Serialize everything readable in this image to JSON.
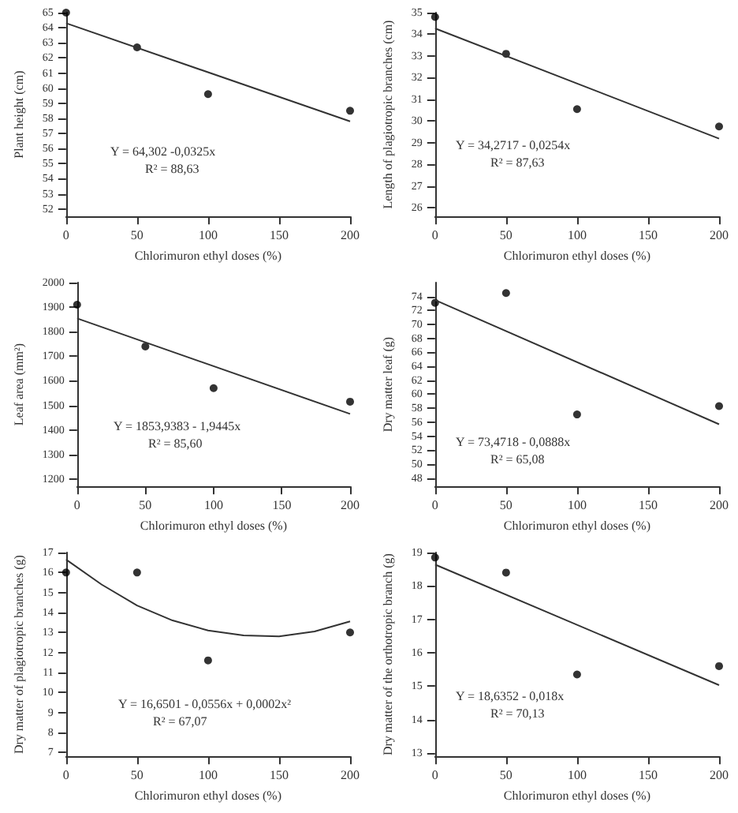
{
  "chart_data": [
    {
      "type": "scatter",
      "xlabel": "Chlorimuron ethyl doses (%)",
      "ylabel": "Plant height (cm)",
      "xlim": [
        0,
        200
      ],
      "xticks": [
        0,
        50,
        100,
        150,
        200
      ],
      "ylim": [
        51.5,
        65
      ],
      "yticks": [
        52,
        53,
        54,
        55,
        56,
        57,
        58,
        59,
        60,
        61,
        62,
        63,
        64,
        65
      ],
      "grid": false,
      "annotations": [
        "Y = 64,302 -0,0325x",
        "R² = 88,63"
      ],
      "series": [
        {
          "type": "scatter",
          "marker": "circle",
          "color": "#000000",
          "x": [
            0,
            50,
            100,
            200
          ],
          "values": [
            65.0,
            62.7,
            59.6,
            58.5
          ]
        },
        {
          "type": "line",
          "marker": "none",
          "line_style": "solid",
          "color": "#333333",
          "x": [
            0,
            200
          ],
          "values": [
            64.3,
            57.8
          ]
        }
      ]
    },
    {
      "type": "scatter",
      "xlabel": "Chlorimuron ethyl doses (%)",
      "ylabel": "Length of plagiotropic branches (cm)",
      "xlim": [
        0,
        200
      ],
      "xticks": [
        0,
        50,
        100,
        150,
        200
      ],
      "ylim": [
        25.6,
        35
      ],
      "yticks": [
        26,
        27,
        28,
        29,
        30,
        31,
        32,
        33,
        34,
        35
      ],
      "grid": false,
      "annotations": [
        "Y = 34,2717 - 0,0254x",
        "R² = 87,63"
      ],
      "series": [
        {
          "type": "scatter",
          "marker": "circle",
          "color": "#000000",
          "x": [
            0,
            50,
            100,
            200
          ],
          "values": [
            34.8,
            33.1,
            30.55,
            29.75
          ]
        },
        {
          "type": "line",
          "marker": "none",
          "line_style": "solid",
          "color": "#333333",
          "x": [
            0,
            200
          ],
          "values": [
            34.27,
            29.19
          ]
        }
      ]
    },
    {
      "type": "scatter",
      "xlabel": "Chlorimuron ethyl doses (%)",
      "ylabel": "Leaf area (mm²)",
      "xlim": [
        0,
        200
      ],
      "xticks": [
        0,
        50,
        100,
        150,
        200
      ],
      "ylim": [
        1170,
        2000
      ],
      "yticks": [
        1200,
        1300,
        1400,
        1500,
        1600,
        1700,
        1800,
        1900,
        2000
      ],
      "grid": false,
      "annotations": [
        "Y = 1853,9383 - 1,9445x",
        "R² = 85,60"
      ],
      "series": [
        {
          "type": "scatter",
          "marker": "circle",
          "color": "#000000",
          "x": [
            0,
            50,
            100,
            200
          ],
          "values": [
            1910,
            1740,
            1570,
            1515
          ]
        },
        {
          "type": "line",
          "marker": "none",
          "line_style": "solid",
          "color": "#333333",
          "x": [
            0,
            200
          ],
          "values": [
            1854,
            1465
          ]
        }
      ]
    },
    {
      "type": "scatter",
      "xlabel": "Chlorimuron ethyl doses (%)",
      "ylabel": "Dry matter leaf (g)",
      "xlim": [
        0,
        200
      ],
      "xticks": [
        0,
        50,
        100,
        150,
        200
      ],
      "ylim": [
        46.8,
        76
      ],
      "yticks": [
        48,
        50,
        52,
        54,
        56,
        58,
        60,
        62,
        64,
        66,
        68,
        70,
        72,
        74
      ],
      "grid": false,
      "annotations": [
        "Y = 73,4718 - 0,0888x",
        "R² = 65,08"
      ],
      "series": [
        {
          "type": "scatter",
          "marker": "circle",
          "color": "#000000",
          "x": [
            0,
            50,
            100,
            200
          ],
          "values": [
            73.1,
            74.5,
            57.1,
            58.3
          ]
        },
        {
          "type": "line",
          "marker": "none",
          "line_style": "solid",
          "color": "#333333",
          "x": [
            0,
            200
          ],
          "values": [
            73.5,
            55.7
          ]
        }
      ]
    },
    {
      "type": "scatter",
      "xlabel": "Chlorimuron ethyl doses (%)",
      "ylabel": "Dry matter of plagiotropic branches (g)",
      "xlim": [
        0,
        200
      ],
      "xticks": [
        0,
        50,
        100,
        150,
        200
      ],
      "ylim": [
        6.8,
        17
      ],
      "yticks": [
        7,
        8,
        9,
        10,
        11,
        12,
        13,
        14,
        15,
        16,
        17
      ],
      "grid": false,
      "annotations": [
        "Y = 16,6501 - 0,0556x + 0,0002x²",
        "R² = 67,07"
      ],
      "series": [
        {
          "type": "scatter",
          "marker": "circle",
          "color": "#000000",
          "x": [
            0,
            50,
            100,
            200
          ],
          "values": [
            16.0,
            16.0,
            11.6,
            13.0
          ]
        },
        {
          "type": "line",
          "marker": "none",
          "line_style": "solid",
          "color": "#333333",
          "x": [
            0,
            25,
            50,
            75,
            100,
            125,
            150,
            175,
            200
          ],
          "values": [
            16.65,
            15.4,
            14.35,
            13.6,
            13.1,
            12.85,
            12.8,
            13.05,
            13.55
          ]
        }
      ]
    },
    {
      "type": "scatter",
      "xlabel": "Chlorimuron ethyl doses (%)",
      "ylabel": "Dry matter of the orthotropic branch (g)",
      "xlim": [
        0,
        200
      ],
      "xticks": [
        0,
        50,
        100,
        150,
        200
      ],
      "ylim": [
        12.9,
        19
      ],
      "yticks": [
        13,
        14,
        15,
        16,
        17,
        18,
        19
      ],
      "grid": false,
      "annotations": [
        "Y = 18,6352 - 0,018x",
        "R² = 70,13"
      ],
      "series": [
        {
          "type": "scatter",
          "marker": "circle",
          "color": "#000000",
          "x": [
            0,
            50,
            100,
            200
          ],
          "values": [
            18.85,
            18.4,
            15.35,
            15.6
          ]
        },
        {
          "type": "line",
          "marker": "none",
          "line_style": "solid",
          "color": "#333333",
          "x": [
            0,
            200
          ],
          "values": [
            18.64,
            15.03
          ]
        }
      ]
    }
  ]
}
